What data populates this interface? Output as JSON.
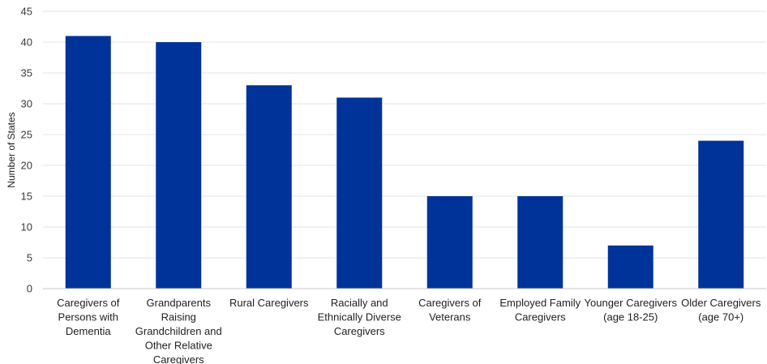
{
  "chart_data": {
    "type": "bar",
    "title": "",
    "xlabel": "",
    "ylabel": "Number of States",
    "ylim": [
      0,
      45
    ],
    "ytick_step": 5,
    "grid": true,
    "legend": "none",
    "bar_color": "#003399",
    "categories": [
      "Caregivers of Persons with Dementia",
      "Grandparents Raising Grandchildren and Other Relative Caregivers",
      "Rural Caregivers",
      "Racially and Ethnically Diverse Caregivers",
      "Caregivers of Veterans",
      "Employed Family Caregivers",
      "Younger Caregivers (age 18-25)",
      "Older Caregivers (age 70+)"
    ],
    "category_lines": [
      [
        "Caregivers of",
        "Persons with",
        "Dementia"
      ],
      [
        "Grandparents",
        "Raising",
        "Grandchildren and",
        "Other Relative",
        "Caregivers"
      ],
      [
        "Rural Caregivers"
      ],
      [
        "Racially and",
        "Ethnically Diverse",
        "Caregivers"
      ],
      [
        "Caregivers of",
        "Veterans"
      ],
      [
        "Employed Family",
        "Caregivers"
      ],
      [
        "Younger Caregivers",
        "(age 18-25)"
      ],
      [
        "Older Caregivers",
        "(age 70+)"
      ]
    ],
    "values": [
      41,
      40,
      33,
      31,
      15,
      15,
      7,
      24
    ]
  }
}
